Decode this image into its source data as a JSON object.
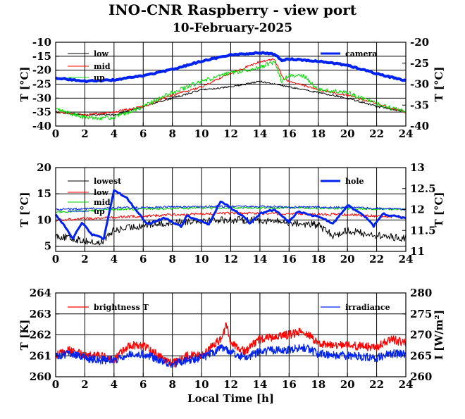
{
  "figure": {
    "title": "INO-CNR Raspberry - view port",
    "subtitle": "10-February-2025"
  },
  "chart_data": [
    {
      "type": "line",
      "x_ticks": [
        "0",
        "2",
        "4",
        "6",
        "8",
        "10",
        "12",
        "14",
        "16",
        "18",
        "20",
        "22",
        "24"
      ],
      "xlim": [
        0,
        24
      ],
      "ylabel": "T [°C]",
      "ylim": [
        -40,
        -10
      ],
      "y_ticks": [
        "-10",
        "-15",
        "-20",
        "-25",
        "-30",
        "-35",
        "-40"
      ],
      "y2label": "T [°C]",
      "y2lim": [
        -40,
        -20
      ],
      "y2_ticks": [
        "-20",
        "-25",
        "-30",
        "-35",
        "-40"
      ],
      "grid": true,
      "legend_left": "top-left",
      "legend_right": "top-right",
      "series": [
        {
          "name": "low",
          "color": "#000000",
          "axis": "left",
          "width": 1,
          "noise": 0.3,
          "step": 0.05,
          "points": [
            [
              0,
              -35
            ],
            [
              2,
              -36
            ],
            [
              4,
              -36
            ],
            [
              6,
              -33
            ],
            [
              8,
              -30
            ],
            [
              10,
              -27
            ],
            [
              12,
              -26
            ],
            [
              14,
              -24
            ],
            [
              15,
              -25
            ],
            [
              16,
              -26
            ],
            [
              18,
              -28
            ],
            [
              20,
              -30
            ],
            [
              22,
              -33
            ],
            [
              24,
              -35
            ]
          ]
        },
        {
          "name": "mid",
          "color": "#ff0000",
          "axis": "left",
          "width": 1,
          "noise": 0.4,
          "step": 0.05,
          "points": [
            [
              0,
              -35
            ],
            [
              2,
              -36
            ],
            [
              4,
              -35
            ],
            [
              6,
              -33
            ],
            [
              8,
              -29
            ],
            [
              10,
              -26
            ],
            [
              12,
              -21
            ],
            [
              14,
              -17
            ],
            [
              15,
              -16
            ],
            [
              15.6,
              -23
            ],
            [
              16,
              -24
            ],
            [
              18,
              -27
            ],
            [
              20,
              -29
            ],
            [
              22,
              -32
            ],
            [
              24,
              -35
            ]
          ]
        },
        {
          "name": "up",
          "color": "#00dd00",
          "axis": "left",
          "width": 1,
          "noise": 0.8,
          "step": 0.05,
          "points": [
            [
              0,
              -34
            ],
            [
              2,
              -37
            ],
            [
              4,
              -37
            ],
            [
              6,
              -33
            ],
            [
              8,
              -28
            ],
            [
              10,
              -24
            ],
            [
              12,
              -21
            ],
            [
              14,
              -19
            ],
            [
              15,
              -17
            ],
            [
              15.5,
              -24
            ],
            [
              16,
              -22
            ],
            [
              17,
              -22
            ],
            [
              18,
              -27
            ],
            [
              20,
              -28
            ],
            [
              22,
              -32
            ],
            [
              24,
              -35
            ]
          ]
        },
        {
          "name": "camera",
          "color": "#0022ee",
          "axis": "right",
          "width": 4,
          "noise": 0.15,
          "step": 0.1,
          "points": [
            [
              0,
              -28.5
            ],
            [
              2,
              -29.3
            ],
            [
              4,
              -29
            ],
            [
              6,
              -28
            ],
            [
              8,
              -26.5
            ],
            [
              10,
              -24.5
            ],
            [
              12,
              -23
            ],
            [
              14,
              -22.5
            ],
            [
              15,
              -22.8
            ],
            [
              15.5,
              -24.3
            ],
            [
              16,
              -24
            ],
            [
              18,
              -24.5
            ],
            [
              20,
              -25.5
            ],
            [
              22,
              -27.5
            ],
            [
              24,
              -29.2
            ]
          ]
        }
      ]
    },
    {
      "type": "line",
      "x_ticks": [
        "0",
        "2",
        "4",
        "6",
        "8",
        "10",
        "12",
        "14",
        "16",
        "18",
        "20",
        "22",
        "24"
      ],
      "xlim": [
        0,
        24
      ],
      "ylabel": "T [°C]",
      "ylim": [
        4,
        20
      ],
      "y_ticks": [
        "20",
        "15",
        "10",
        "5"
      ],
      "y2label": "T [°C]",
      "y2lim": [
        11,
        13
      ],
      "y2_ticks": [
        "13",
        "12.5",
        "12",
        "11.5",
        "11"
      ],
      "grid": true,
      "legend_left": "top-left",
      "legend_right": "top-right",
      "series": [
        {
          "name": "lowest",
          "color": "#000000",
          "axis": "left",
          "width": 1,
          "noise": 0.7,
          "step": 0.05,
          "points": [
            [
              0,
              7
            ],
            [
              2,
              6
            ],
            [
              3,
              5.5
            ],
            [
              4,
              8
            ],
            [
              6,
              9
            ],
            [
              8,
              9.5
            ],
            [
              10,
              10
            ],
            [
              12,
              10
            ],
            [
              14,
              10
            ],
            [
              16,
              9.5
            ],
            [
              18,
              9
            ],
            [
              19,
              7
            ],
            [
              20,
              8
            ],
            [
              22,
              7
            ],
            [
              24,
              6.5
            ]
          ]
        },
        {
          "name": "low",
          "color": "#ff0000",
          "axis": "left",
          "width": 1,
          "noise": 0.25,
          "step": 0.05,
          "points": [
            [
              0,
              10
            ],
            [
              4,
              10.5
            ],
            [
              8,
              11
            ],
            [
              12,
              11.3
            ],
            [
              16,
              11.2
            ],
            [
              20,
              11
            ],
            [
              24,
              10.5
            ]
          ]
        },
        {
          "name": "mid",
          "color": "#00cc00",
          "axis": "left",
          "width": 1,
          "noise": 0.2,
          "step": 0.05,
          "points": [
            [
              0,
              11.5
            ],
            [
              4,
              12
            ],
            [
              8,
              12.2
            ],
            [
              12,
              12.3
            ],
            [
              16,
              12.3
            ],
            [
              20,
              12.2
            ],
            [
              24,
              12
            ]
          ]
        },
        {
          "name": "up",
          "color": "#0022ee",
          "axis": "left",
          "width": 1,
          "noise": 0.2,
          "step": 0.05,
          "points": [
            [
              0,
              12
            ],
            [
              4,
              12.3
            ],
            [
              8,
              12.5
            ],
            [
              12,
              12.6
            ],
            [
              16,
              12.5
            ],
            [
              20,
              12.4
            ],
            [
              24,
              12
            ]
          ]
        },
        {
          "name": "hole",
          "color": "#0022ee",
          "axis": "right",
          "width": 3,
          "noise": 0.02,
          "step": 0.1,
          "points": [
            [
              0,
              11.9
            ],
            [
              1.2,
              11.3
            ],
            [
              1.8,
              11.7
            ],
            [
              2.5,
              11.4
            ],
            [
              3.3,
              11.3
            ],
            [
              4,
              12.45
            ],
            [
              4.8,
              12.3
            ],
            [
              6.3,
              11.65
            ],
            [
              7.5,
              11.8
            ],
            [
              8.6,
              11.6
            ],
            [
              9,
              11.85
            ],
            [
              10.5,
              11.65
            ],
            [
              11.3,
              12.2
            ],
            [
              13,
              11.8
            ],
            [
              13.3,
              11.65
            ],
            [
              14,
              11.9
            ],
            [
              15,
              12
            ],
            [
              16,
              11.7
            ],
            [
              16.6,
              11.95
            ],
            [
              18.3,
              11.8
            ],
            [
              19,
              11.65
            ],
            [
              20,
              12.1
            ],
            [
              21,
              11.9
            ],
            [
              21.8,
              11.6
            ],
            [
              22.4,
              11.9
            ],
            [
              23,
              11.85
            ],
            [
              24,
              11.8
            ]
          ]
        }
      ]
    },
    {
      "type": "line",
      "x_ticks": [
        "0",
        "2",
        "4",
        "6",
        "8",
        "10",
        "12",
        "14",
        "16",
        "18",
        "20",
        "22",
        "24"
      ],
      "xlim": [
        0,
        24
      ],
      "xlabel": "Local Time [h]",
      "ylabel": "T [K]",
      "ylim": [
        260,
        264
      ],
      "y_ticks": [
        "264",
        "263",
        "262",
        "261",
        "260"
      ],
      "y2label": "I [W/m²]",
      "y2lim": [
        260,
        280
      ],
      "y2_ticks": [
        "280",
        "275",
        "270",
        "265",
        "260"
      ],
      "grid": true,
      "legend_left": "top-left",
      "legend_right": "top-right",
      "series": [
        {
          "name": "brightness T",
          "color": "#ff0000",
          "axis": "left",
          "width": 1.3,
          "noise": 0.2,
          "step": 0.03,
          "points": [
            [
              0,
              261
            ],
            [
              1,
              261.3
            ],
            [
              2,
              261
            ],
            [
              3,
              261
            ],
            [
              4,
              260.8
            ],
            [
              5,
              261.5
            ],
            [
              6,
              261.5
            ],
            [
              8,
              260.6
            ],
            [
              9,
              261
            ],
            [
              10,
              261
            ],
            [
              11.3,
              261.8
            ],
            [
              11.7,
              262.5
            ],
            [
              12,
              261.6
            ],
            [
              13,
              261.2
            ],
            [
              14,
              261.8
            ],
            [
              16,
              262
            ],
            [
              17,
              262.2
            ],
            [
              18,
              261.6
            ],
            [
              20,
              261.5
            ],
            [
              22,
              261.4
            ],
            [
              23,
              261.8
            ],
            [
              24,
              261.6
            ]
          ]
        },
        {
          "name": "irradiance",
          "color": "#0022ee",
          "axis": "right",
          "width": 1.3,
          "noise": 1.0,
          "step": 0.03,
          "points": [
            [
              0,
              265
            ],
            [
              1,
              265.5
            ],
            [
              2,
              264.5
            ],
            [
              3,
              264
            ],
            [
              4,
              264
            ],
            [
              5,
              265.5
            ],
            [
              6,
              265.5
            ],
            [
              8,
              263
            ],
            [
              9,
              264
            ],
            [
              10,
              264.5
            ],
            [
              11.5,
              267
            ],
            [
              12,
              266
            ],
            [
              13,
              264.5
            ],
            [
              14,
              266
            ],
            [
              16,
              266.5
            ],
            [
              17,
              267
            ],
            [
              18,
              265.5
            ],
            [
              20,
              265
            ],
            [
              22,
              264.5
            ],
            [
              23,
              265.5
            ],
            [
              24,
              265.5
            ]
          ]
        }
      ]
    }
  ]
}
